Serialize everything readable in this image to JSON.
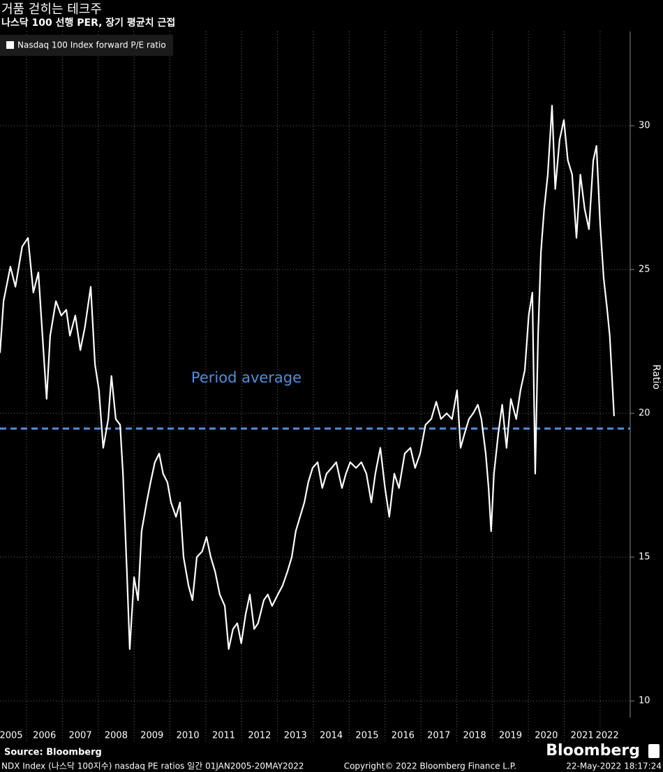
{
  "chart_data": {
    "type": "line",
    "title": "거품 걷히는 테크주",
    "subtitle": "나스닥 100 선행 PER, 장기 평균치 근접",
    "y_label": "Ratio",
    "source": "Source: Bloomberg",
    "brand": "Bloomberg",
    "footnote": "NDX Index (나스닥 100지수) nasdaq PE ratios  일간 01JAN2005-20MAY2022",
    "copyright": "Copyright© 2022 Bloomberg Finance L.P.",
    "timestamp": "22-May-2022 18:17:24",
    "xlim": [
      2005.26,
      2022.84
    ],
    "ylim": [
      9.42,
      33.28
    ],
    "yticks": [
      10,
      15,
      20,
      25,
      30
    ],
    "x_gridlines": [
      2006,
      2007,
      2008,
      2009,
      2010,
      2011,
      2012,
      2013,
      2014,
      2015,
      2016,
      2017,
      2018,
      2019,
      2020,
      2021,
      2022
    ],
    "xticks": [
      {
        "value": 2005.5,
        "label": "2005"
      },
      {
        "value": 2006.5,
        "label": "2006"
      },
      {
        "value": 2007.5,
        "label": "2007"
      },
      {
        "value": 2008.5,
        "label": "2008"
      },
      {
        "value": 2009.5,
        "label": "2009"
      },
      {
        "value": 2010.5,
        "label": "2010"
      },
      {
        "value": 2011.5,
        "label": "2011"
      },
      {
        "value": 2012.5,
        "label": "2012"
      },
      {
        "value": 2013.5,
        "label": "2013"
      },
      {
        "value": 2014.5,
        "label": "2014"
      },
      {
        "value": 2015.5,
        "label": "2015"
      },
      {
        "value": 2016.5,
        "label": "2016"
      },
      {
        "value": 2017.5,
        "label": "2017"
      },
      {
        "value": 2018.5,
        "label": "2018"
      },
      {
        "value": 2019.5,
        "label": "2019"
      },
      {
        "value": 2020.5,
        "label": "2020"
      },
      {
        "value": 2021.5,
        "label": "2021"
      },
      {
        "value": 2022.2,
        "label": "2022"
      }
    ],
    "grid": true,
    "legend": "top-left",
    "average": {
      "label": "Period average",
      "value": 19.47,
      "color": "#4f8fdc"
    },
    "x": [
      2005.26,
      2005.36,
      2005.55,
      2005.69,
      2005.88,
      2006.04,
      2006.19,
      2006.33,
      2006.47,
      2006.56,
      2006.66,
      2006.82,
      2006.97,
      2007.11,
      2007.21,
      2007.36,
      2007.5,
      2007.63,
      2007.79,
      2007.91,
      2008.02,
      2008.14,
      2008.28,
      2008.37,
      2008.49,
      2008.61,
      2008.69,
      2008.8,
      2008.88,
      2009.0,
      2009.11,
      2009.21,
      2009.35,
      2009.46,
      2009.58,
      2009.7,
      2009.81,
      2009.93,
      2010.03,
      2010.17,
      2010.28,
      2010.38,
      2010.52,
      2010.63,
      2010.75,
      2010.9,
      2011.02,
      2011.14,
      2011.26,
      2011.39,
      2011.53,
      2011.64,
      2011.76,
      2011.88,
      2011.99,
      2012.11,
      2012.23,
      2012.35,
      2012.46,
      2012.62,
      2012.73,
      2012.85,
      2013.01,
      2013.14,
      2013.28,
      2013.4,
      2013.51,
      2013.63,
      2013.75,
      2013.86,
      2013.98,
      2014.12,
      2014.25,
      2014.37,
      2014.51,
      2014.64,
      2014.8,
      2014.91,
      2015.03,
      2015.19,
      2015.34,
      2015.48,
      2015.62,
      2015.73,
      2015.87,
      2016.0,
      2016.12,
      2016.26,
      2016.39,
      2016.55,
      2016.71,
      2016.84,
      2016.98,
      2017.13,
      2017.29,
      2017.43,
      2017.56,
      2017.72,
      2017.87,
      2018.01,
      2018.11,
      2018.22,
      2018.34,
      2018.46,
      2018.59,
      2018.69,
      2018.81,
      2018.89,
      2018.96,
      2019.04,
      2019.16,
      2019.27,
      2019.39,
      2019.51,
      2019.66,
      2019.78,
      2019.9,
      2020.01,
      2020.11,
      2020.19,
      2020.27,
      2020.35,
      2020.44,
      2020.54,
      2020.66,
      2020.75,
      2020.87,
      2020.99,
      2021.1,
      2021.22,
      2021.34,
      2021.45,
      2021.57,
      2021.69,
      2021.81,
      2021.9,
      2022.0,
      2022.1,
      2022.19,
      2022.27,
      2022.39
    ],
    "series": [
      {
        "name": "Nasdaq 100 Index forward P/E ratio",
        "color": "#ffffff",
        "values": [
          22.1,
          23.9,
          25.1,
          24.4,
          25.8,
          26.1,
          24.2,
          24.9,
          22.2,
          20.5,
          22.7,
          23.9,
          23.4,
          23.6,
          22.7,
          23.4,
          22.2,
          23.0,
          24.4,
          21.7,
          20.8,
          18.8,
          19.8,
          21.3,
          19.8,
          19.6,
          17.9,
          14.5,
          11.8,
          14.3,
          13.5,
          15.9,
          16.9,
          17.6,
          18.3,
          18.6,
          17.9,
          17.6,
          16.9,
          16.4,
          16.9,
          15.0,
          14.0,
          13.5,
          15.0,
          15.2,
          15.7,
          15.0,
          14.5,
          13.7,
          13.3,
          11.8,
          12.5,
          12.7,
          12.0,
          13.0,
          13.7,
          12.5,
          12.7,
          13.5,
          13.7,
          13.3,
          13.7,
          14.0,
          14.5,
          15.0,
          15.9,
          16.4,
          16.9,
          17.6,
          18.1,
          18.3,
          17.4,
          17.9,
          18.1,
          18.3,
          17.4,
          17.9,
          18.3,
          18.1,
          18.3,
          17.9,
          16.9,
          17.9,
          18.8,
          17.4,
          16.4,
          17.9,
          17.4,
          18.6,
          18.8,
          18.1,
          18.6,
          19.6,
          19.8,
          20.4,
          19.8,
          20.0,
          19.8,
          20.8,
          18.8,
          19.3,
          19.8,
          20.0,
          20.3,
          19.8,
          18.6,
          17.4,
          15.9,
          17.9,
          19.3,
          20.3,
          18.8,
          20.5,
          19.8,
          20.8,
          21.5,
          23.4,
          24.2,
          17.9,
          22.7,
          25.6,
          27.1,
          28.3,
          30.7,
          27.8,
          29.5,
          30.2,
          28.8,
          28.3,
          26.1,
          28.3,
          27.1,
          26.4,
          28.8,
          29.3,
          26.6,
          24.7,
          23.7,
          22.7,
          19.9
        ]
      }
    ]
  }
}
